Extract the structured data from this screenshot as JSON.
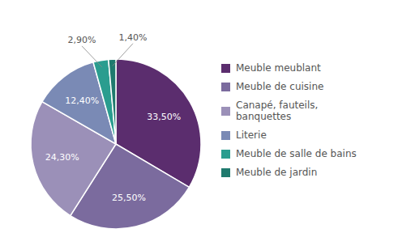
{
  "chart_data": {
    "type": "pie",
    "categories": [
      "Meuble meublant",
      "Meuble de cuisine",
      "Canapé, fauteils,\nbanquettes",
      "Literie",
      "Meuble de salle de bains",
      "Meuble de jardin"
    ],
    "values": [
      33.5,
      25.5,
      24.3,
      12.4,
      2.9,
      1.4
    ],
    "value_labels": [
      "33,50%",
      "25,50%",
      "24,30%",
      "12,40%",
      "2,90%",
      "1,40%"
    ],
    "colors": [
      "#5b2d6e",
      "#7b6b9e",
      "#9b90b8",
      "#7a8ab5",
      "#2a9d8f",
      "#1f7a6e"
    ],
    "data_labels": true,
    "legend": "right"
  }
}
